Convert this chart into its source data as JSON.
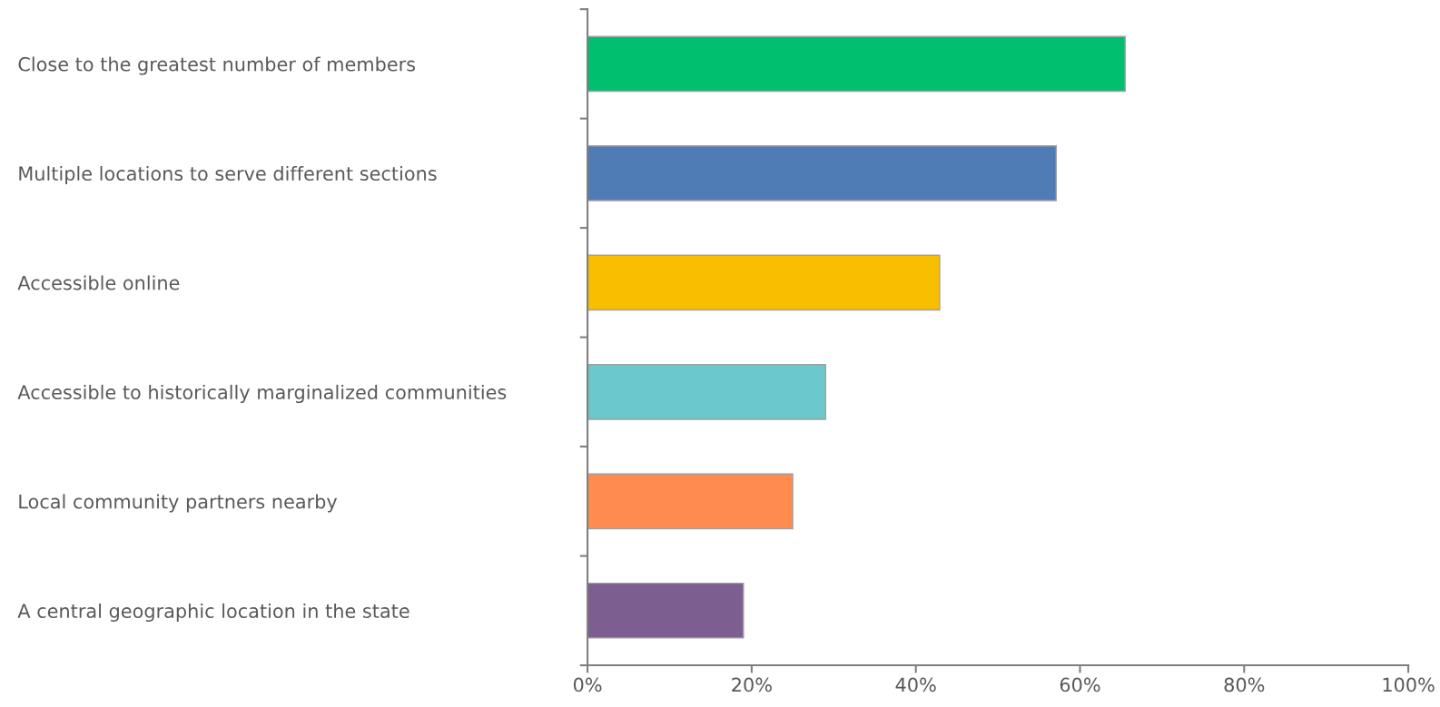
{
  "chart_data": {
    "type": "bar",
    "orientation": "horizontal",
    "categories": [
      "Close to the greatest number of members",
      "Multiple locations to serve different sections",
      "Accessible online",
      "Accessible to historically marginalized communities",
      "Local community partners nearby",
      "A central geographic location in the state"
    ],
    "values": [
      65.5,
      57.1,
      42.9,
      29,
      25,
      19
    ],
    "colors": [
      "#00bf6f",
      "#507cb6",
      "#f9be00",
      "#6bc8cd",
      "#ff8b4f",
      "#7d5e90"
    ],
    "xlim": [
      0,
      100
    ],
    "xticks": [
      {
        "value": 0,
        "label": "0%"
      },
      {
        "value": 20,
        "label": "20%"
      },
      {
        "value": 40,
        "label": "40%"
      },
      {
        "value": 60,
        "label": "60%"
      },
      {
        "value": 80,
        "label": "80%"
      },
      {
        "value": 100,
        "label": "100%"
      }
    ],
    "grid": false,
    "legend": false
  }
}
